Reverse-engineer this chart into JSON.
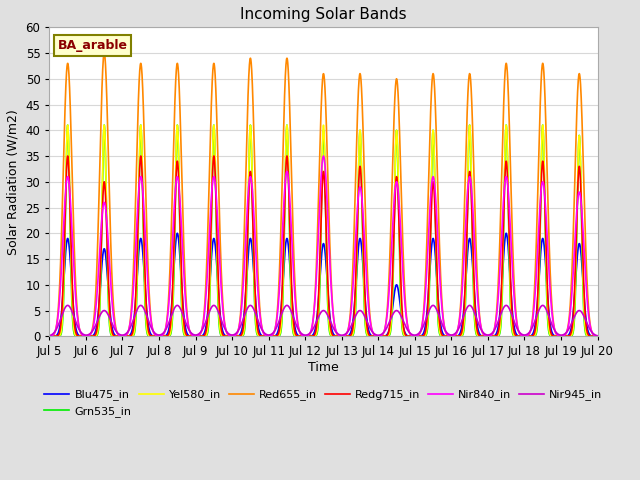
{
  "title": "Incoming Solar Bands",
  "xlabel": "Time",
  "ylabel": "Solar Radiation (W/m2)",
  "annotation": "BA_arable",
  "ylim": [
    0,
    60
  ],
  "n_days": 15,
  "xtick_labels": [
    "Jul 5",
    "Jul 6",
    "Jul 7",
    "Jul 8",
    "Jul 9",
    "Jul 10",
    "Jul 11",
    "Jul 12",
    "Jul 13",
    "Jul 14",
    "Jul 15",
    "Jul 16",
    "Jul 17",
    "Jul 18",
    "Jul 19",
    "Jul 20"
  ],
  "series": {
    "Blu475_in": {
      "color": "#0000ff",
      "lw": 1.2
    },
    "Grn535_in": {
      "color": "#00ee00",
      "lw": 1.2
    },
    "Yel580_in": {
      "color": "#ffff00",
      "lw": 1.2
    },
    "Red655_in": {
      "color": "#ff8800",
      "lw": 1.2
    },
    "Redg715_in": {
      "color": "#ff0000",
      "lw": 1.2
    },
    "Nir840_in": {
      "color": "#ff00ff",
      "lw": 1.2
    },
    "Nir945_in": {
      "color": "#cc00cc",
      "lw": 1.2
    }
  },
  "day_peaks": {
    "Blu475_in": [
      19,
      17,
      19,
      20,
      19,
      19,
      19,
      18,
      19,
      10,
      19,
      19,
      20,
      19,
      18
    ],
    "Grn535_in": [
      41,
      41,
      41,
      41,
      41,
      41,
      41,
      40,
      40,
      40,
      40,
      41,
      41,
      41,
      39
    ],
    "Yel580_in": [
      41,
      41,
      41,
      41,
      41,
      41,
      41,
      41,
      40,
      40,
      40,
      41,
      41,
      41,
      39
    ],
    "Red655_in": [
      53,
      55,
      53,
      53,
      53,
      54,
      54,
      51,
      51,
      50,
      51,
      51,
      53,
      53,
      51
    ],
    "Redg715_in": [
      35,
      30,
      35,
      34,
      35,
      32,
      35,
      32,
      33,
      31,
      30,
      32,
      34,
      34,
      33
    ],
    "Nir840_in": [
      31,
      26,
      31,
      31,
      31,
      31,
      32,
      35,
      29,
      30,
      31,
      31,
      31,
      30,
      28
    ],
    "Nir945_in": [
      6,
      5,
      6,
      6,
      6,
      6,
      6,
      5,
      5,
      5,
      6,
      6,
      6,
      6,
      5
    ]
  },
  "peak_widths": {
    "Blu475_in": 0.1,
    "Grn535_in": 0.06,
    "Yel580_in": 0.065,
    "Red655_in": 0.12,
    "Redg715_in": 0.08,
    "Nir840_in": 0.13,
    "Nir945_in": 0.18
  },
  "plot_bg": "#ffffff",
  "fig_bg": "#e0e0e0",
  "grid_color": "#d8d8d8",
  "title_fontsize": 11,
  "label_fontsize": 9,
  "tick_fontsize": 8.5,
  "legend_fontsize": 8
}
